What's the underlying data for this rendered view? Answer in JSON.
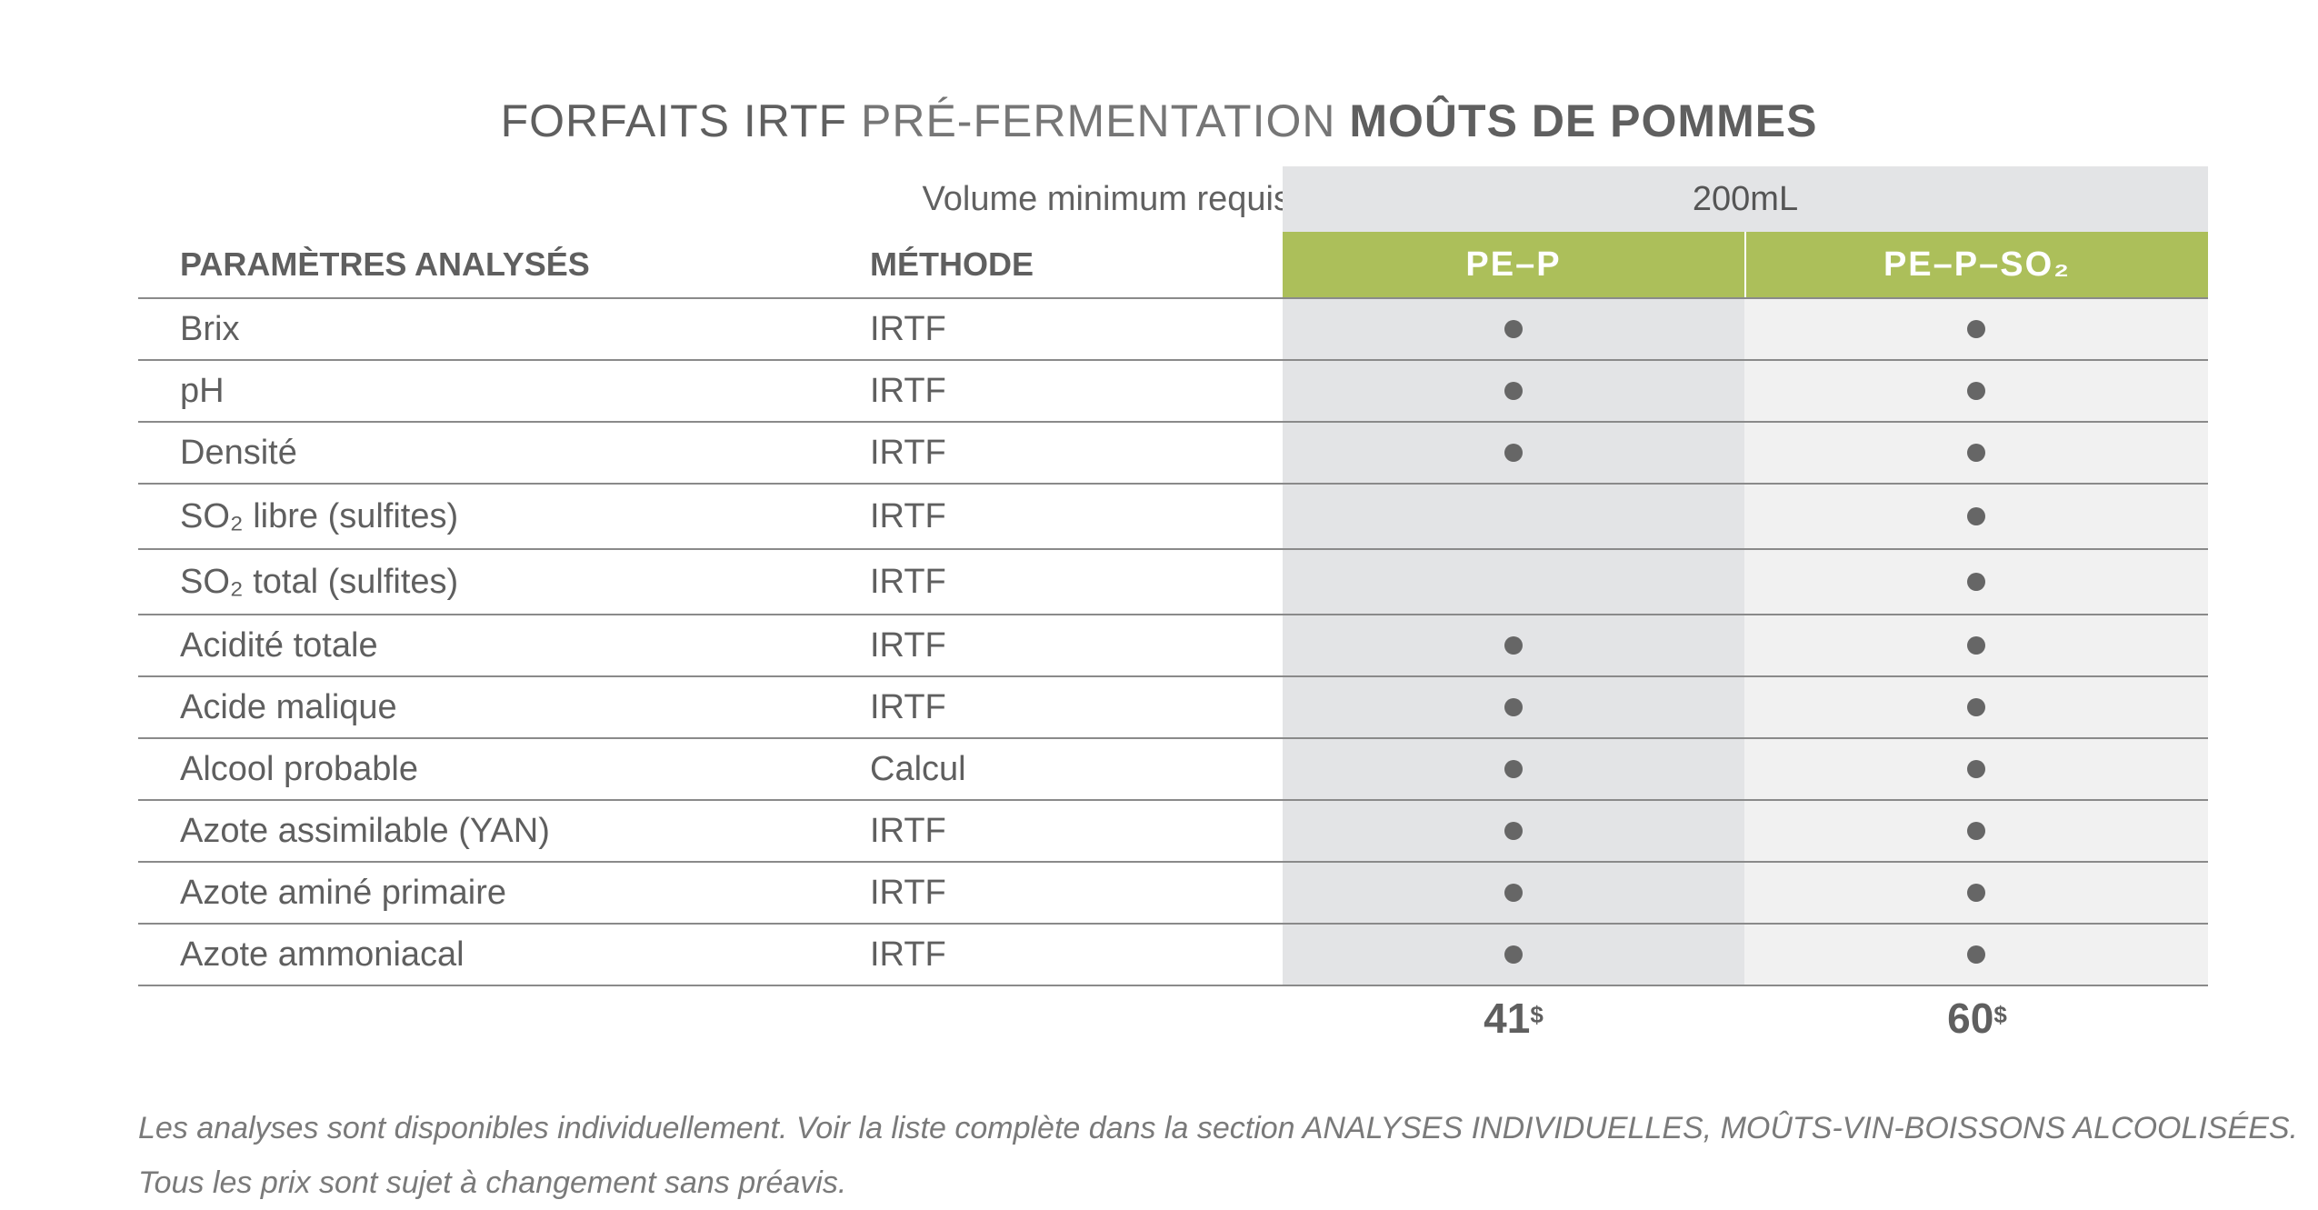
{
  "title": {
    "part1": "FORFAITS IRTF",
    "part2": "PRÉ-FERMENTATION",
    "part3": "MOÛTS DE POMMES"
  },
  "volume": {
    "label": "Volume minimum requis",
    "value": "200mL"
  },
  "headers": {
    "parameter": "PARAMÈTRES ANALYSÉS",
    "method": "MÉTHODE",
    "package1": "PE–P",
    "package2": "PE–P–SO₂"
  },
  "rows": [
    {
      "parameter": "Brix",
      "method": "IRTF",
      "p1": true,
      "p2": true
    },
    {
      "parameter": "pH",
      "method": "IRTF",
      "p1": true,
      "p2": true
    },
    {
      "parameter": "Densité",
      "method": "IRTF",
      "p1": true,
      "p2": true
    },
    {
      "parameter": "SO₂ libre (sulfites)",
      "method": "IRTF",
      "p1": false,
      "p2": true
    },
    {
      "parameter": "SO₂ total (sulfites)",
      "method": "IRTF",
      "p1": false,
      "p2": true
    },
    {
      "parameter": "Acidité totale",
      "method": "IRTF",
      "p1": true,
      "p2": true
    },
    {
      "parameter": "Acide malique",
      "method": "IRTF",
      "p1": true,
      "p2": true
    },
    {
      "parameter": "Alcool probable",
      "method": "Calcul",
      "p1": true,
      "p2": true
    },
    {
      "parameter": "Azote assimilable (YAN)",
      "method": "IRTF",
      "p1": true,
      "p2": true
    },
    {
      "parameter": "Azote aminé primaire",
      "method": "IRTF",
      "p1": true,
      "p2": true
    },
    {
      "parameter": "Azote ammoniacal",
      "method": "IRTF",
      "p1": true,
      "p2": true
    }
  ],
  "prices": {
    "package1": "41",
    "package2": "60",
    "currency": "$"
  },
  "notes": {
    "line1": "Les analyses sont disponibles individuellement. Voir la liste complète dans la section ANALYSES INDIVIDUELLES, MOÛTS-VIN-BOISSONS ALCOOLISÉES.",
    "line2": "Tous les prix sont sujet à changement sans préavis."
  },
  "colors": {
    "accent": "#acbf5a",
    "column1_bg": "#e3e4e6",
    "column2_bg": "#f1f1f1",
    "text": "#5f5f5f"
  }
}
